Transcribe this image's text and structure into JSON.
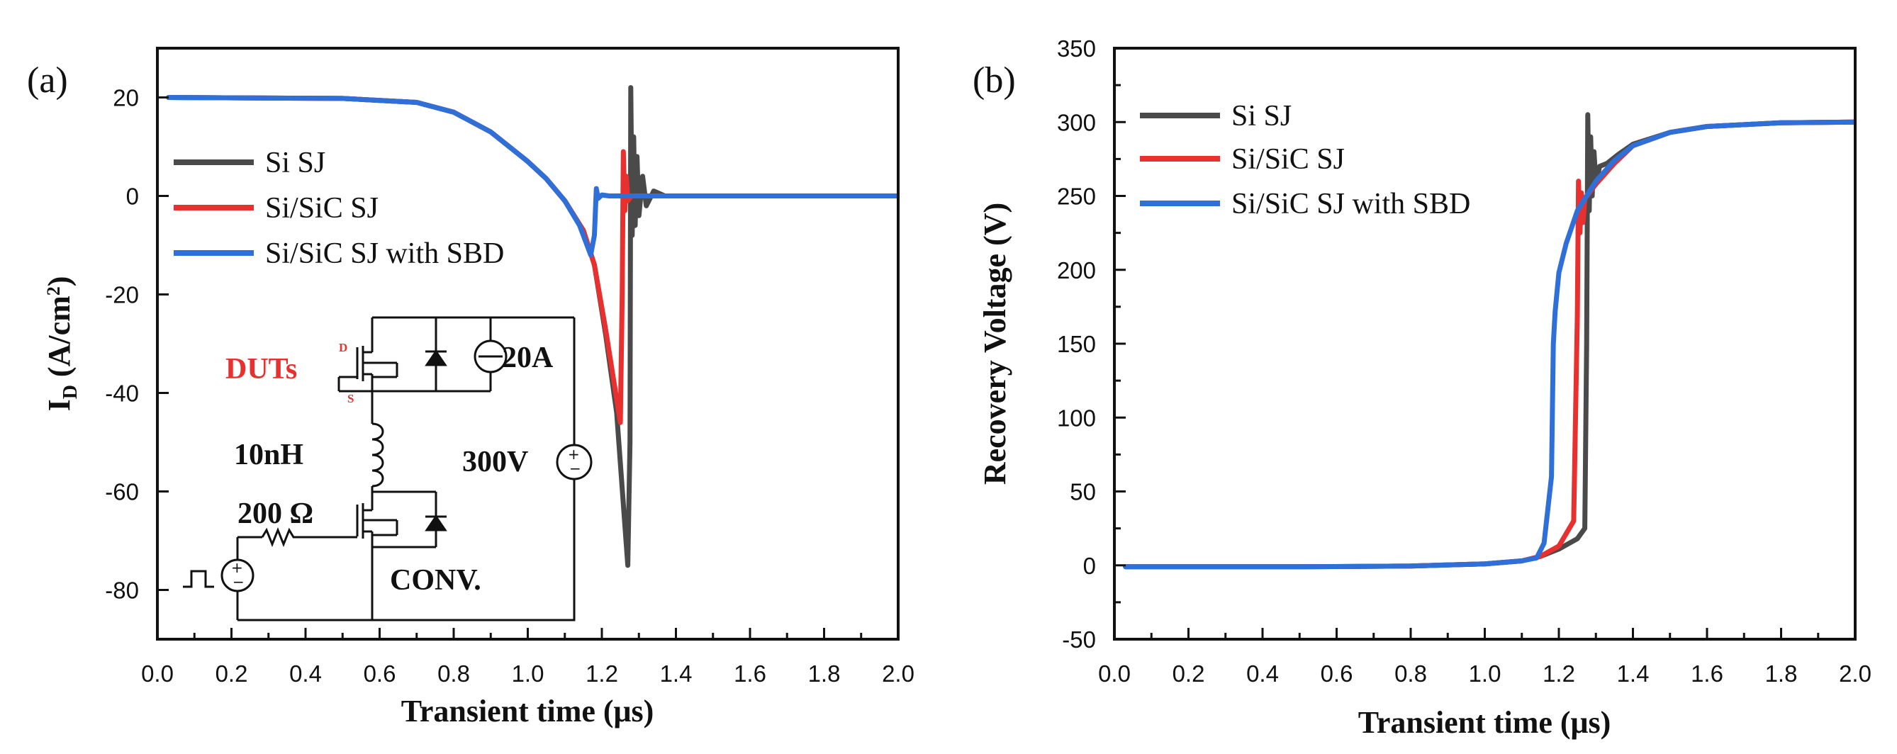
{
  "chart_data": [
    {
      "type": "line",
      "panel_label": "(a)",
      "xlabel": "Transient time (μs)",
      "ylabel_main": "I",
      "ylabel_sub": "D",
      "ylabel_unit_pre": " (A/cm",
      "ylabel_unit_sup": "2",
      "ylabel_unit_post": ")",
      "xlim": [
        0.0,
        2.0
      ],
      "ylim": [
        -90,
        30
      ],
      "xticks": [
        "0.0",
        "0.2",
        "0.4",
        "0.6",
        "0.8",
        "1.0",
        "1.2",
        "1.4",
        "1.6",
        "1.8",
        "2.0"
      ],
      "yticks": [
        "20",
        "0",
        "-20",
        "-40",
        "-60",
        "-80"
      ],
      "ytick_values": [
        20,
        0,
        -20,
        -40,
        -60,
        -80
      ],
      "legend_position": "upper-left",
      "series": [
        {
          "name": "Si SJ",
          "color": "#4a4a4a",
          "points": [
            [
              0.03,
              20
            ],
            [
              0.5,
              19.8
            ],
            [
              0.7,
              19
            ],
            [
              0.8,
              17
            ],
            [
              0.9,
              13
            ],
            [
              1.0,
              7
            ],
            [
              1.05,
              3.5
            ],
            [
              1.1,
              -1
            ],
            [
              1.15,
              -7
            ],
            [
              1.18,
              -14
            ],
            [
              1.21,
              -28
            ],
            [
              1.24,
              -44
            ],
            [
              1.27,
              -75
            ],
            [
              1.276,
              -50
            ],
            [
              1.278,
              22
            ],
            [
              1.282,
              -8
            ],
            [
              1.286,
              12
            ],
            [
              1.29,
              -6
            ],
            [
              1.295,
              8
            ],
            [
              1.3,
              -4
            ],
            [
              1.31,
              4
            ],
            [
              1.32,
              -2
            ],
            [
              1.34,
              1
            ],
            [
              1.37,
              0
            ],
            [
              1.45,
              0
            ],
            [
              2.0,
              0
            ]
          ]
        },
        {
          "name": "Si/SiC SJ",
          "color": "#e8302e",
          "points": [
            [
              0.03,
              20
            ],
            [
              0.5,
              19.8
            ],
            [
              0.7,
              19
            ],
            [
              0.8,
              17
            ],
            [
              0.9,
              13
            ],
            [
              1.0,
              7
            ],
            [
              1.05,
              3.5
            ],
            [
              1.1,
              -1
            ],
            [
              1.15,
              -7
            ],
            [
              1.18,
              -14
            ],
            [
              1.21,
              -27
            ],
            [
              1.25,
              -46
            ],
            [
              1.255,
              -20
            ],
            [
              1.258,
              9
            ],
            [
              1.262,
              -3
            ],
            [
              1.266,
              4
            ],
            [
              1.27,
              -1
            ],
            [
              1.28,
              0
            ],
            [
              2.0,
              0
            ]
          ]
        },
        {
          "name": "Si/SiC SJ with SBD",
          "color": "#2e6fd8",
          "points": [
            [
              0.03,
              20
            ],
            [
              0.5,
              19.8
            ],
            [
              0.7,
              19
            ],
            [
              0.8,
              17
            ],
            [
              0.9,
              13
            ],
            [
              1.0,
              7
            ],
            [
              1.05,
              3.5
            ],
            [
              1.1,
              -1
            ],
            [
              1.14,
              -6
            ],
            [
              1.17,
              -12
            ],
            [
              1.18,
              -8
            ],
            [
              1.185,
              1.5
            ],
            [
              1.19,
              -0.5
            ],
            [
              1.2,
              0.2
            ],
            [
              1.22,
              0
            ],
            [
              2.0,
              0
            ]
          ]
        }
      ],
      "inset": {
        "dut_label": "DUTs",
        "drain_label": "D",
        "source_label": "S",
        "current_label": "20A",
        "inductor_label": "10nH",
        "voltage_label": "300V",
        "resistor_label": "200 Ω",
        "conv_label": "CONV."
      }
    },
    {
      "type": "line",
      "panel_label": "(b)",
      "xlabel": "Transient time (μs)",
      "ylabel": "Recovery Voltage (V)",
      "xlim": [
        0.0,
        2.0
      ],
      "ylim": [
        -50,
        350
      ],
      "xticks": [
        "0.0",
        "0.2",
        "0.4",
        "0.6",
        "0.8",
        "1.0",
        "1.2",
        "1.4",
        "1.6",
        "1.8",
        "2.0"
      ],
      "yticks": [
        "350",
        "300",
        "250",
        "200",
        "150",
        "100",
        "50",
        "0",
        "-50"
      ],
      "ytick_values": [
        350,
        300,
        250,
        200,
        150,
        100,
        50,
        0,
        -50
      ],
      "legend_position": "upper-left",
      "series": [
        {
          "name": "Si SJ",
          "color": "#4a4a4a",
          "points": [
            [
              0.03,
              -1
            ],
            [
              0.5,
              -1
            ],
            [
              0.8,
              -0.5
            ],
            [
              1.0,
              1
            ],
            [
              1.1,
              3
            ],
            [
              1.15,
              6
            ],
            [
              1.2,
              11
            ],
            [
              1.25,
              18
            ],
            [
              1.27,
              25
            ],
            [
              1.275,
              150
            ],
            [
              1.278,
              305
            ],
            [
              1.282,
              240
            ],
            [
              1.286,
              290
            ],
            [
              1.29,
              250
            ],
            [
              1.295,
              280
            ],
            [
              1.3,
              258
            ],
            [
              1.31,
              270
            ],
            [
              1.33,
              272
            ],
            [
              1.36,
              278
            ],
            [
              1.4,
              285
            ],
            [
              1.5,
              293
            ],
            [
              1.6,
              297
            ],
            [
              1.8,
              299.5
            ],
            [
              2.0,
              300
            ]
          ]
        },
        {
          "name": "Si/SiC SJ",
          "color": "#e8302e",
          "points": [
            [
              0.03,
              -1
            ],
            [
              0.5,
              -1
            ],
            [
              0.8,
              -0.5
            ],
            [
              1.0,
              1
            ],
            [
              1.1,
              3
            ],
            [
              1.15,
              6
            ],
            [
              1.2,
              13
            ],
            [
              1.24,
              30
            ],
            [
              1.25,
              170
            ],
            [
              1.253,
              260
            ],
            [
              1.257,
              225
            ],
            [
              1.261,
              252
            ],
            [
              1.265,
              232
            ],
            [
              1.27,
              248
            ],
            [
              1.3,
              258
            ],
            [
              1.35,
              272
            ],
            [
              1.4,
              284
            ],
            [
              1.5,
              293
            ],
            [
              1.6,
              297
            ],
            [
              1.8,
              299.5
            ],
            [
              2.0,
              300
            ]
          ]
        },
        {
          "name": "Si/SiC SJ with SBD",
          "color": "#2e6fd8",
          "points": [
            [
              0.03,
              -1
            ],
            [
              0.5,
              -1
            ],
            [
              0.8,
              -0.5
            ],
            [
              1.0,
              1
            ],
            [
              1.1,
              3
            ],
            [
              1.14,
              5
            ],
            [
              1.16,
              15
            ],
            [
              1.18,
              60
            ],
            [
              1.185,
              150
            ],
            [
              1.19,
              172
            ],
            [
              1.2,
              198
            ],
            [
              1.22,
              218
            ],
            [
              1.25,
              240
            ],
            [
              1.3,
              260
            ],
            [
              1.35,
              274
            ],
            [
              1.4,
              284
            ],
            [
              1.5,
              293
            ],
            [
              1.6,
              297
            ],
            [
              1.8,
              299.5
            ],
            [
              2.0,
              300
            ]
          ]
        }
      ]
    }
  ]
}
